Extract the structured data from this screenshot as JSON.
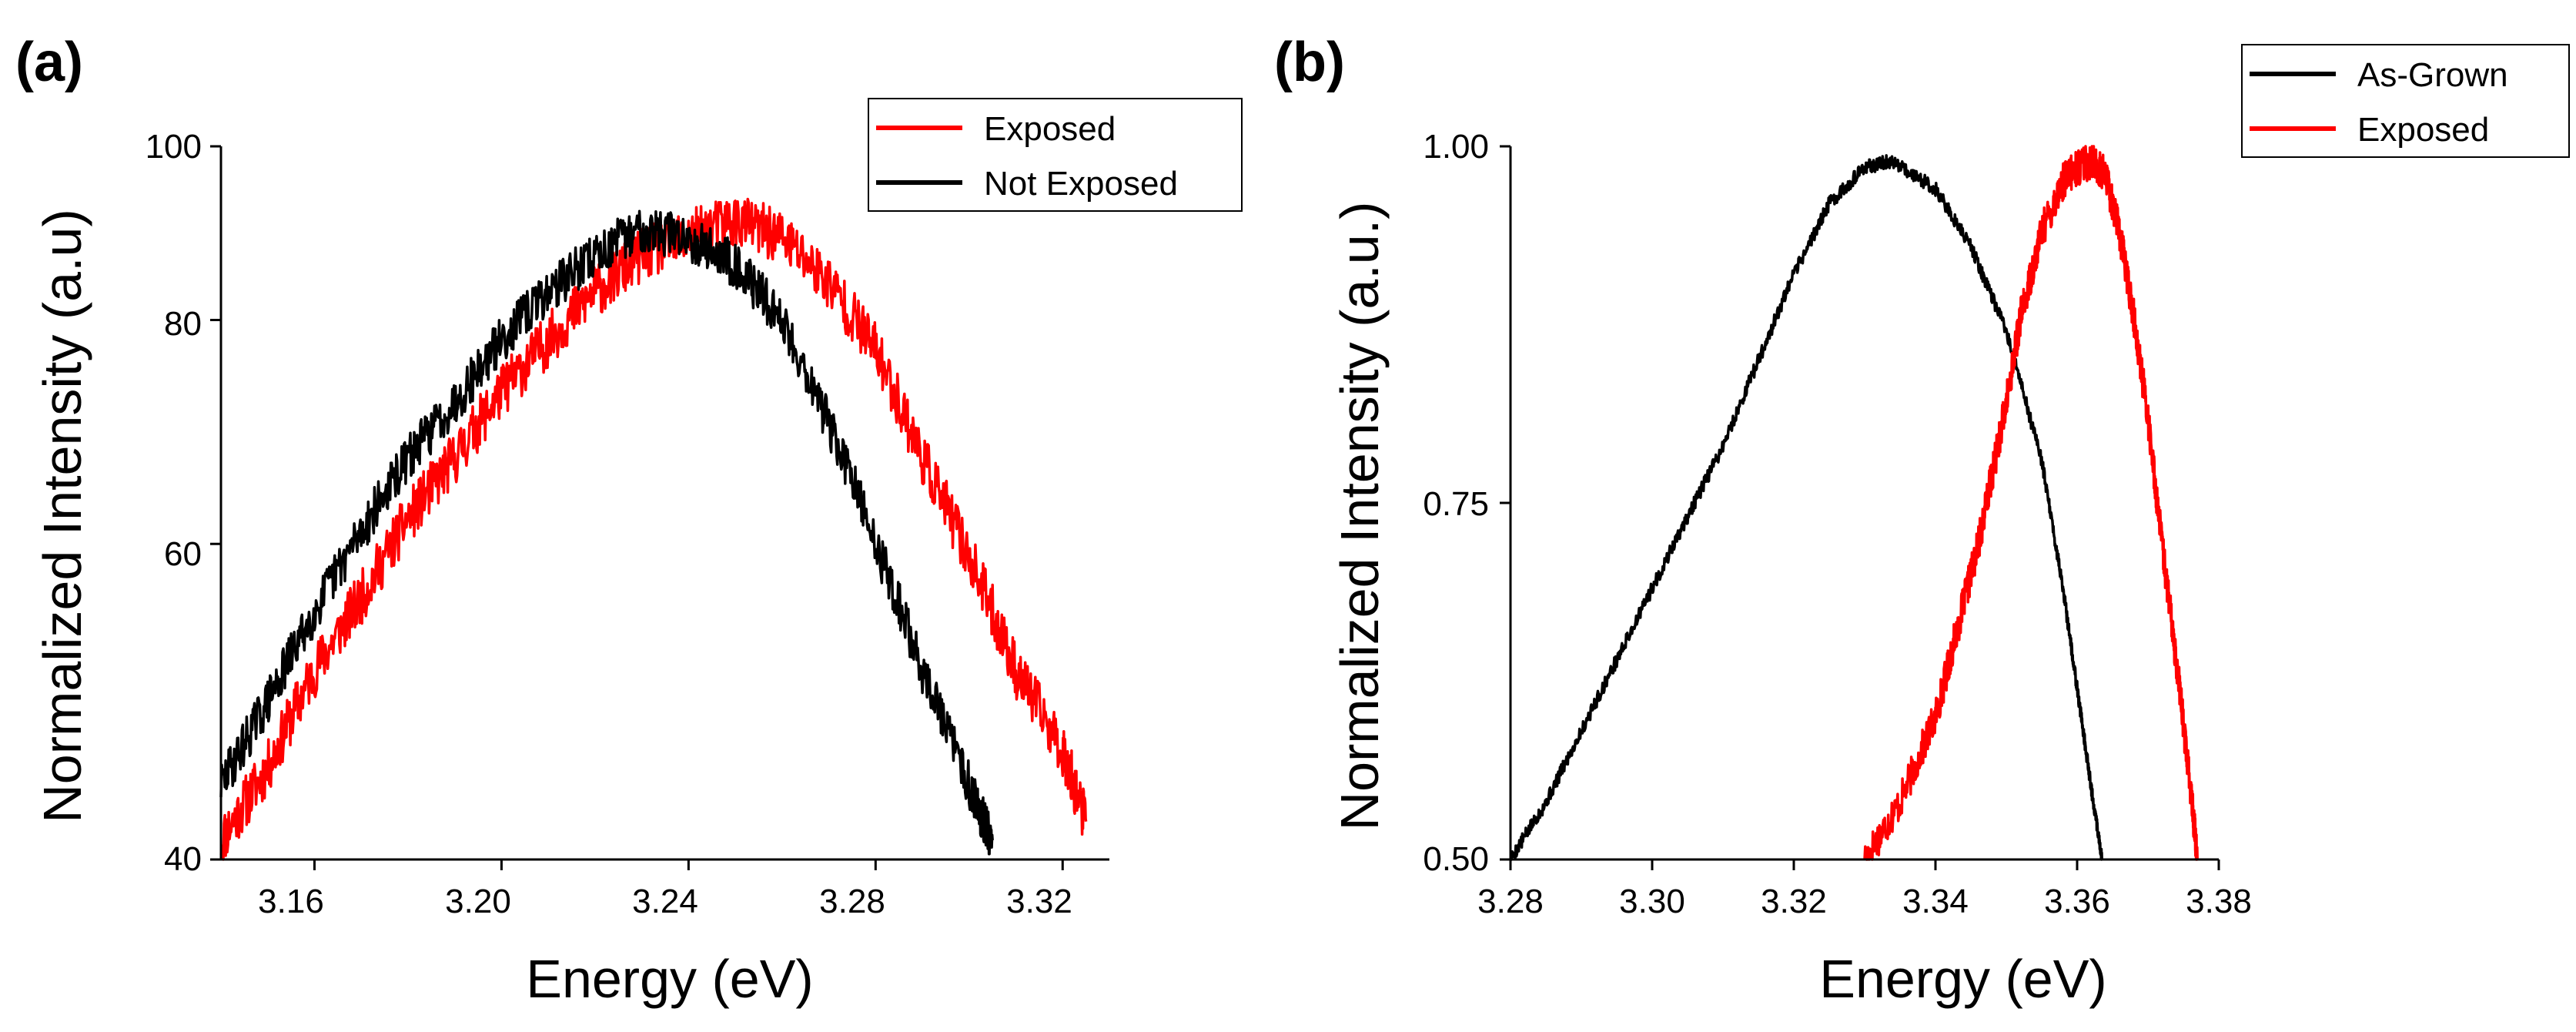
{
  "chart_data": [
    {
      "type": "line",
      "panel_label": "(a)",
      "xlabel": "Energy (eV)",
      "ylabel": "Normalized Intensity (a.u)",
      "xlim": [
        3.14,
        3.33
      ],
      "ylim": [
        40,
        100
      ],
      "yscale": "log",
      "xticks": [
        3.16,
        3.2,
        3.24,
        3.28,
        3.32
      ],
      "xtick_labels": [
        "3.16",
        "3.20",
        "3.24",
        "3.28",
        "3.32"
      ],
      "yticks": [
        40,
        60,
        80,
        100
      ],
      "ytick_labels": [
        "40",
        "60",
        "80",
        "100"
      ],
      "legend_position": "top-right",
      "series": [
        {
          "name": "Exposed",
          "color": "#ff0000",
          "noise": 0.035,
          "seed": 11,
          "x": [
            3.14,
            3.15,
            3.16,
            3.17,
            3.18,
            3.19,
            3.2,
            3.21,
            3.22,
            3.23,
            3.24,
            3.25,
            3.26,
            3.27,
            3.28,
            3.29,
            3.3,
            3.31,
            3.32,
            3.325
          ],
          "y": [
            41,
            45,
            51,
            56,
            62,
            67,
            73,
            78,
            83,
            87,
            89,
            91,
            89,
            84,
            77,
            67,
            59,
            51,
            46,
            42
          ]
        },
        {
          "name": "Not Exposed",
          "color": "#000000",
          "noise": 0.03,
          "seed": 29,
          "x": [
            3.14,
            3.15,
            3.16,
            3.17,
            3.18,
            3.19,
            3.2,
            3.21,
            3.22,
            3.23,
            3.24,
            3.25,
            3.26,
            3.27,
            3.28,
            3.29,
            3.3,
            3.305
          ],
          "y": [
            44,
            49,
            55,
            61,
            67,
            72,
            78,
            83,
            87,
            90,
            89,
            86,
            80,
            70,
            60,
            51,
            44,
            41
          ]
        }
      ]
    },
    {
      "type": "line",
      "panel_label": "(b)",
      "xlabel": "Energy (eV)",
      "ylabel": "Normalized Intensity (a.u.)",
      "xlim": [
        3.28,
        3.38
      ],
      "ylim": [
        0.5,
        1.0
      ],
      "yscale": "linear",
      "xticks": [
        3.28,
        3.3,
        3.32,
        3.34,
        3.36,
        3.38
      ],
      "xtick_labels": [
        "3.28",
        "3.30",
        "3.32",
        "3.34",
        "3.36",
        "3.38"
      ],
      "yticks": [
        0.5,
        0.75,
        1.0
      ],
      "ytick_labels": [
        "0.50",
        "0.75",
        "1.00"
      ],
      "legend_position": "top-right",
      "series": [
        {
          "name": "As-Grown",
          "color": "#000000",
          "noise": 0.005,
          "seed": 5,
          "x": [
            3.28,
            3.285,
            3.29,
            3.295,
            3.3,
            3.305,
            3.31,
            3.315,
            3.32,
            3.325,
            3.33,
            3.334,
            3.34,
            3.345,
            3.35,
            3.355,
            3.358,
            3.36,
            3.362,
            3.3635
          ],
          "y": [
            0.5,
            0.54,
            0.59,
            0.64,
            0.69,
            0.74,
            0.79,
            0.85,
            0.91,
            0.96,
            0.985,
            0.99,
            0.97,
            0.93,
            0.87,
            0.78,
            0.69,
            0.62,
            0.55,
            0.5
          ]
        },
        {
          "name": "Exposed",
          "color": "#ff0000",
          "noise": 0.013,
          "seed": 17,
          "x": [
            3.33,
            3.335,
            3.34,
            3.343,
            3.346,
            3.348,
            3.35,
            3.352,
            3.355,
            3.358,
            3.36,
            3.362,
            3.364,
            3.366,
            3.368,
            3.37,
            3.372,
            3.374,
            3.376,
            3.377
          ],
          "y": [
            0.5,
            0.54,
            0.6,
            0.66,
            0.72,
            0.77,
            0.82,
            0.88,
            0.94,
            0.975,
            0.985,
            0.99,
            0.98,
            0.94,
            0.88,
            0.81,
            0.72,
            0.64,
            0.55,
            0.5
          ]
        }
      ]
    }
  ]
}
